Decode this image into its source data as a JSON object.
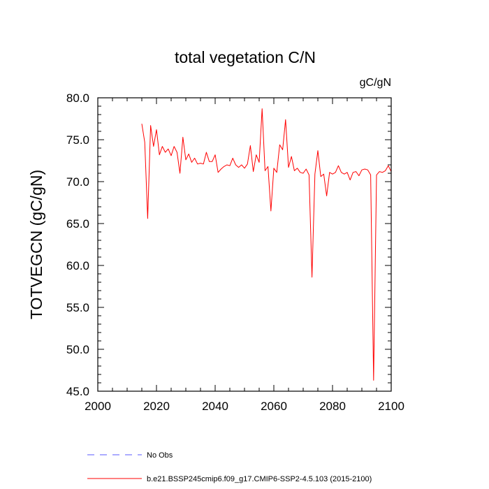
{
  "chart_data": {
    "type": "line",
    "title": "total vegetation C/N",
    "units": "gC/gN",
    "ylabel": "TOTVEGCN  (gC/gN)",
    "xlabel": "",
    "xlim": [
      2000,
      2100
    ],
    "ylim": [
      45.0,
      80.0
    ],
    "xticks": [
      2000,
      2020,
      2040,
      2060,
      2080,
      2100
    ],
    "yticks": [
      "45.0",
      "50.0",
      "55.0",
      "60.0",
      "65.0",
      "70.0",
      "75.0",
      "80.0"
    ],
    "series": [
      {
        "name": "b.e21.BSSP245cmip6.f09_g17.CMIP6-SSP2-4.5.103 (2015-2100)",
        "color": "#ff0000",
        "dash": "solid",
        "x": [
          2015,
          2016,
          2017,
          2018,
          2019,
          2020,
          2021,
          2022,
          2023,
          2024,
          2025,
          2026,
          2027,
          2028,
          2029,
          2030,
          2031,
          2032,
          2033,
          2034,
          2035,
          2036,
          2037,
          2038,
          2039,
          2040,
          2041,
          2042,
          2043,
          2044,
          2045,
          2046,
          2047,
          2048,
          2049,
          2050,
          2051,
          2052,
          2053,
          2054,
          2055,
          2056,
          2057,
          2058,
          2059,
          2060,
          2061,
          2062,
          2063,
          2064,
          2065,
          2066,
          2067,
          2068,
          2069,
          2070,
          2071,
          2072,
          2073,
          2074,
          2075,
          2076,
          2077,
          2078,
          2079,
          2080,
          2081,
          2082,
          2083,
          2084,
          2085,
          2086,
          2087,
          2088,
          2089,
          2090,
          2091,
          2092,
          2093,
          2094,
          2095,
          2096,
          2097,
          2098,
          2099,
          2100
        ],
        "values": [
          76.9,
          74.7,
          65.6,
          76.7,
          74.2,
          76.2,
          73.2,
          74.2,
          73.5,
          73.9,
          73.1,
          74.2,
          73.5,
          71.0,
          75.3,
          72.6,
          73.3,
          72.3,
          72.8,
          72.1,
          72.2,
          72.1,
          73.5,
          72.4,
          72.4,
          73.2,
          71.1,
          71.5,
          71.8,
          72.0,
          71.9,
          72.8,
          72.0,
          71.7,
          72.0,
          71.6,
          72.1,
          74.3,
          71.2,
          73.2,
          72.3,
          78.7,
          71.3,
          71.8,
          66.5,
          71.6,
          71.1,
          74.4,
          73.8,
          77.4,
          71.7,
          73.0,
          71.3,
          71.6,
          71.1,
          71.0,
          71.5,
          70.8,
          58.6,
          70.9,
          73.7,
          70.6,
          70.9,
          68.3,
          71.1,
          70.9,
          71.1,
          71.9,
          71.1,
          70.9,
          71.1,
          70.2,
          71.1,
          71.2,
          70.7,
          71.4,
          71.5,
          71.4,
          70.8,
          46.3,
          70.8,
          71.2,
          71.1,
          71.3,
          71.9,
          71.2
        ]
      },
      {
        "name": "No Obs",
        "color": "#5a5aff",
        "dash": "dashed",
        "x": [],
        "values": []
      }
    ]
  }
}
